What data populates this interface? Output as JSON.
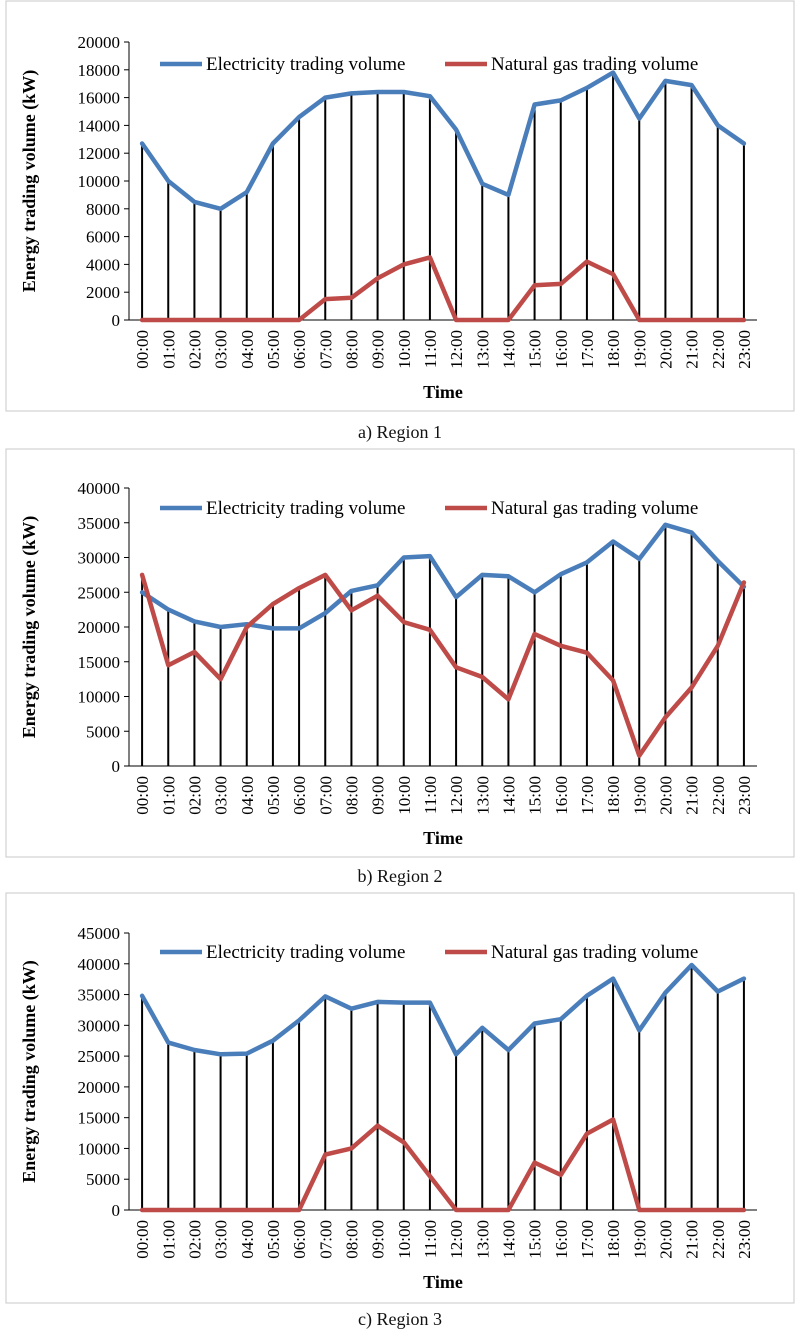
{
  "chart_data": [
    {
      "type": "line",
      "title": "",
      "caption": "a) Region 1",
      "xlabel": "Time",
      "ylabel": "Energy trading volume (kW)",
      "ylim": [
        0,
        20000
      ],
      "ystep": 2000,
      "categories": [
        "00:00",
        "01:00",
        "02:00",
        "03:00",
        "04:00",
        "05:00",
        "06:00",
        "07:00",
        "08:00",
        "09:00",
        "10:00",
        "11:00",
        "12:00",
        "13:00",
        "14:00",
        "15:00",
        "16:00",
        "17:00",
        "18:00",
        "19:00",
        "20:00",
        "21:00",
        "22:00",
        "23:00"
      ],
      "series": [
        {
          "name": "Electricity trading volume",
          "color": "#4a7ebb",
          "values": [
            12700,
            10000,
            8500,
            8000,
            9200,
            12700,
            14600,
            16000,
            16300,
            16400,
            16400,
            16100,
            13700,
            9800,
            9000,
            15500,
            15800,
            16700,
            17800,
            14500,
            17200,
            16900,
            14000,
            12700
          ]
        },
        {
          "name": "Natural gas trading volume",
          "color": "#be4b48",
          "values": [
            0,
            0,
            0,
            0,
            0,
            0,
            0,
            1500,
            1600,
            3000,
            4000,
            4500,
            0,
            0,
            0,
            2500,
            2600,
            4200,
            3300,
            0,
            0,
            0,
            0,
            0
          ]
        }
      ],
      "legend": "top"
    },
    {
      "type": "line",
      "title": "",
      "caption": "b) Region 2",
      "xlabel": "Time",
      "ylabel": "Energy trading volume (kW)",
      "ylim": [
        0,
        40000
      ],
      "ystep": 5000,
      "categories": [
        "00:00",
        "01:00",
        "02:00",
        "03:00",
        "04:00",
        "05:00",
        "06:00",
        "07:00",
        "08:00",
        "09:00",
        "10:00",
        "11:00",
        "12:00",
        "13:00",
        "14:00",
        "15:00",
        "16:00",
        "17:00",
        "18:00",
        "19:00",
        "20:00",
        "21:00",
        "22:00",
        "23:00"
      ],
      "series": [
        {
          "name": "Electricity trading volume",
          "color": "#4a7ebb",
          "values": [
            25000,
            22500,
            20800,
            20000,
            20400,
            19800,
            19800,
            22000,
            25200,
            26000,
            30000,
            30200,
            24300,
            27500,
            27300,
            25000,
            27600,
            29300,
            32300,
            29800,
            34700,
            33600,
            29500,
            25800
          ]
        },
        {
          "name": "Natural gas trading volume",
          "color": "#be4b48",
          "values": [
            27500,
            14500,
            16400,
            12500,
            20000,
            23300,
            25600,
            27500,
            22400,
            24500,
            20700,
            19600,
            14200,
            12800,
            9600,
            19000,
            17300,
            16300,
            12300,
            1500,
            7000,
            11300,
            17300,
            26400
          ]
        }
      ],
      "legend": "top"
    },
    {
      "type": "line",
      "title": "",
      "caption": "c) Region 3",
      "xlabel": "Time",
      "ylabel": "Energy trading volume (kW)",
      "ylim": [
        0,
        45000
      ],
      "ystep": 5000,
      "categories": [
        "00:00",
        "01:00",
        "02:00",
        "03:00",
        "04:00",
        "05:00",
        "06:00",
        "07:00",
        "08:00",
        "09:00",
        "10:00",
        "11:00",
        "12:00",
        "13:00",
        "14:00",
        "15:00",
        "16:00",
        "17:00",
        "18:00",
        "19:00",
        "20:00",
        "21:00",
        "22:00",
        "23:00"
      ],
      "series": [
        {
          "name": "Electricity trading volume",
          "color": "#4a7ebb",
          "values": [
            34800,
            27200,
            26000,
            25300,
            25400,
            27500,
            30800,
            34700,
            32700,
            33800,
            33700,
            33700,
            25300,
            29600,
            26000,
            30300,
            31000,
            34800,
            37600,
            29200,
            35300,
            39800,
            35500,
            37600
          ]
        },
        {
          "name": "Natural gas trading volume",
          "color": "#be4b48",
          "values": [
            0,
            0,
            0,
            0,
            0,
            0,
            0,
            9000,
            10000,
            13700,
            11000,
            5500,
            0,
            0,
            0,
            7700,
            5700,
            12400,
            14700,
            0,
            0,
            0,
            0,
            0
          ]
        }
      ],
      "legend": "top"
    }
  ]
}
